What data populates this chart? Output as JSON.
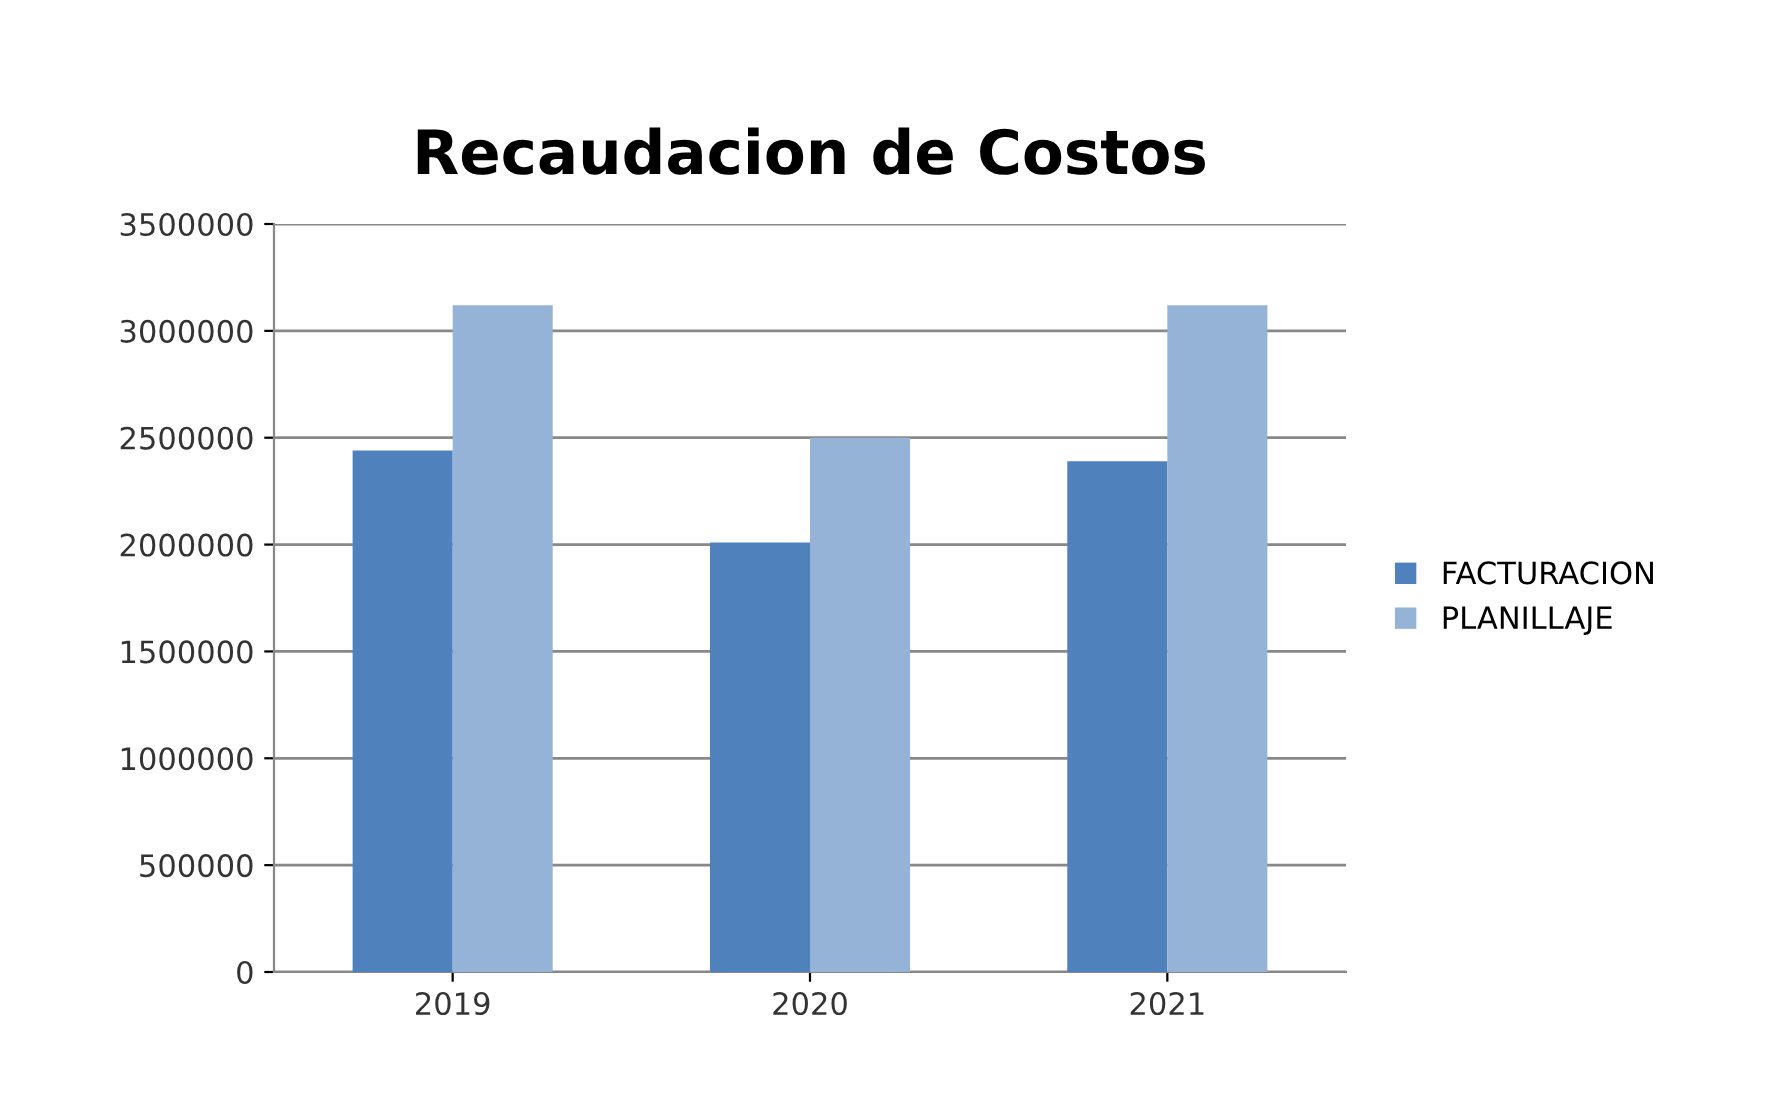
{
  "chart_data": {
    "type": "bar",
    "title": "Recaudacion de Costos",
    "categories": [
      "2019",
      "2020",
      "2021"
    ],
    "series": [
      {
        "name": "FACTURACION",
        "color": "#4f81bd",
        "values": [
          2440000,
          2010000,
          2390000
        ]
      },
      {
        "name": "PLANILLAJE",
        "color": "#95b3d7",
        "values": [
          3120000,
          2500000,
          3120000
        ]
      }
    ],
    "ylim": [
      0,
      3500000
    ],
    "yticks": [
      0,
      500000,
      1000000,
      1500000,
      2000000,
      2500000,
      3000000,
      3500000
    ],
    "grid": "y",
    "legend": "right"
  }
}
